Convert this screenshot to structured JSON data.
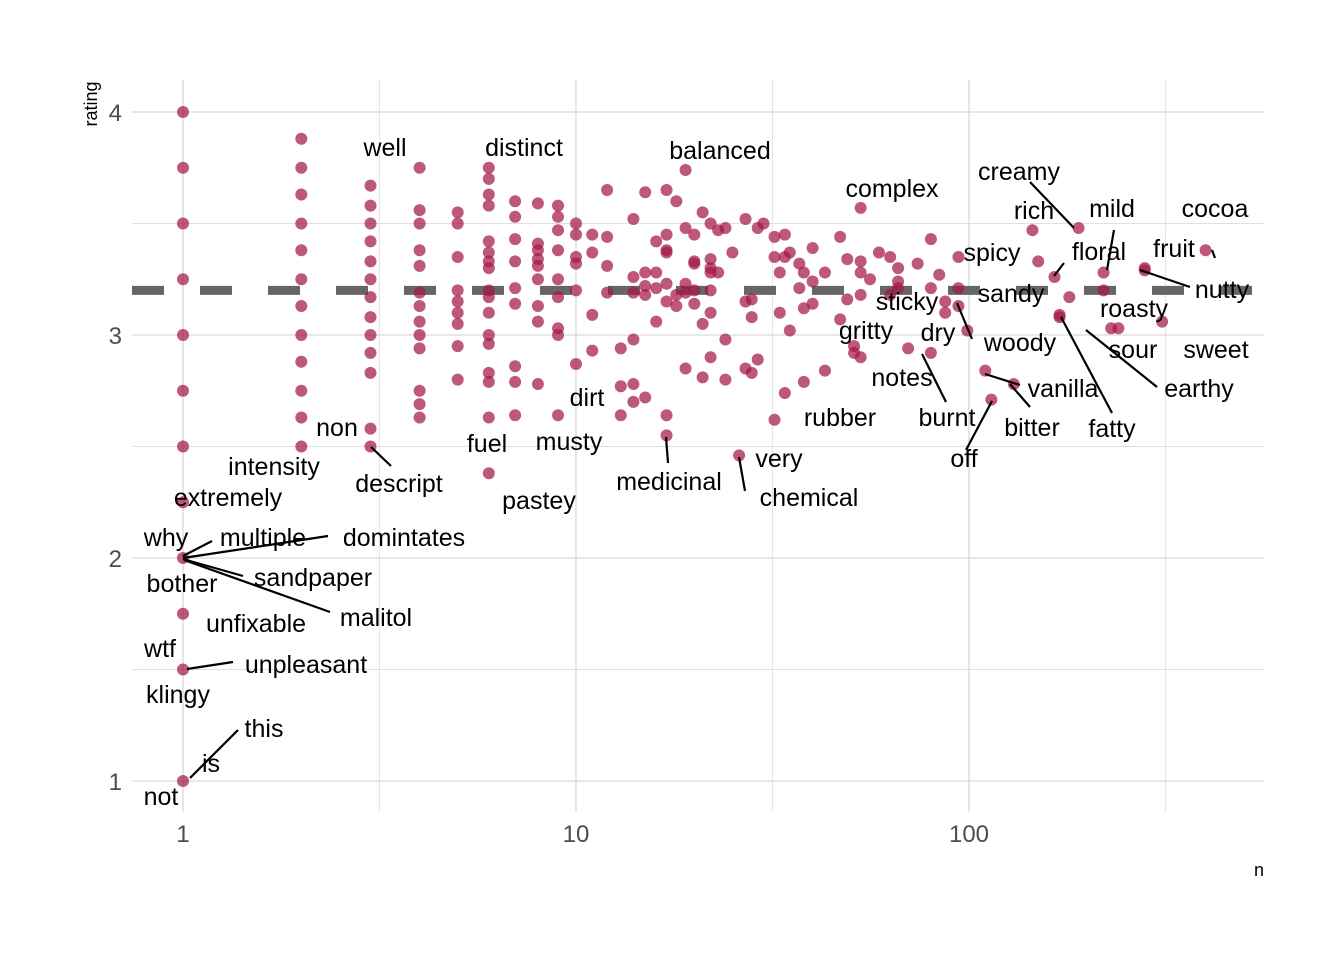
{
  "chart_data": {
    "type": "scatter",
    "xlabel": "n",
    "ylabel": "rating",
    "x_scale": "log10",
    "xlim": [
      0.78,
      560
    ],
    "ylim": [
      0.87,
      4.2
    ],
    "x_ticks": [
      1,
      10,
      100
    ],
    "x_tick_labels": [
      "1",
      "10",
      "100"
    ],
    "x_minor_ticks": [
      3.16,
      31.6,
      316
    ],
    "y_ticks": [
      1,
      2,
      3,
      4
    ],
    "y_tick_labels": [
      "1",
      "2",
      "3",
      "4"
    ],
    "y_minor_ticks": [
      1.5,
      2.5,
      3.5
    ],
    "grid": true,
    "point_color": "#a3174a",
    "reference_line": {
      "y": 3.2,
      "style": "dashed",
      "color": "#666666"
    },
    "points": [
      [
        1,
        4
      ],
      [
        1,
        3.75
      ],
      [
        1,
        3.5
      ],
      [
        1,
        3.25
      ],
      [
        1,
        3
      ],
      [
        1,
        2.75
      ],
      [
        1,
        2.5
      ],
      [
        1,
        2.25
      ],
      [
        1,
        2
      ],
      [
        1,
        1.75
      ],
      [
        1,
        1.5
      ],
      [
        1,
        1
      ],
      [
        2,
        3.88
      ],
      [
        2,
        3.75
      ],
      [
        2,
        3.63
      ],
      [
        2,
        3.5
      ],
      [
        2,
        3.38
      ],
      [
        2,
        3.25
      ],
      [
        2,
        3.13
      ],
      [
        2,
        3
      ],
      [
        2,
        2.88
      ],
      [
        2,
        2.75
      ],
      [
        2,
        2.63
      ],
      [
        2,
        2.5
      ],
      [
        3,
        3.67
      ],
      [
        3,
        3.58
      ],
      [
        3,
        3.5
      ],
      [
        3,
        3.42
      ],
      [
        3,
        3.33
      ],
      [
        3,
        3.25
      ],
      [
        3,
        3.17
      ],
      [
        3,
        3.08
      ],
      [
        3,
        3
      ],
      [
        3,
        2.92
      ],
      [
        3,
        2.83
      ],
      [
        3,
        2.58
      ],
      [
        3,
        2.5
      ],
      [
        4,
        3.75
      ],
      [
        4,
        3.56
      ],
      [
        4,
        3.5
      ],
      [
        4,
        3.38
      ],
      [
        4,
        3.31
      ],
      [
        4,
        3.19
      ],
      [
        4,
        3.13
      ],
      [
        4,
        3.06
      ],
      [
        4,
        3
      ],
      [
        4,
        2.94
      ],
      [
        4,
        2.75
      ],
      [
        4,
        2.69
      ],
      [
        4,
        2.63
      ],
      [
        5,
        3.55
      ],
      [
        5,
        3.5
      ],
      [
        5,
        3.35
      ],
      [
        5,
        3.2
      ],
      [
        5,
        3.15
      ],
      [
        5,
        3.1
      ],
      [
        5,
        3.05
      ],
      [
        5,
        2.95
      ],
      [
        5,
        2.8
      ],
      [
        6,
        3.75
      ],
      [
        6,
        3.7
      ],
      [
        6,
        3.63
      ],
      [
        6,
        3.58
      ],
      [
        6,
        3.42
      ],
      [
        6,
        3.37
      ],
      [
        6,
        3.33
      ],
      [
        6,
        3.3
      ],
      [
        6,
        3.2
      ],
      [
        6,
        3.17
      ],
      [
        6,
        3.1
      ],
      [
        6,
        3
      ],
      [
        6,
        2.96
      ],
      [
        6,
        2.83
      ],
      [
        6,
        2.79
      ],
      [
        6,
        2.63
      ],
      [
        6,
        2.38
      ],
      [
        7,
        3.6
      ],
      [
        7,
        3.53
      ],
      [
        7,
        3.43
      ],
      [
        7,
        3.33
      ],
      [
        7,
        3.21
      ],
      [
        7,
        3.14
      ],
      [
        7,
        2.86
      ],
      [
        7,
        2.79
      ],
      [
        7,
        2.64
      ],
      [
        8,
        3.59
      ],
      [
        8,
        3.41
      ],
      [
        8,
        3.38
      ],
      [
        8,
        3.34
      ],
      [
        8,
        3.31
      ],
      [
        8,
        3.25
      ],
      [
        8,
        3.13
      ],
      [
        8,
        3.06
      ],
      [
        8,
        2.78
      ],
      [
        9,
        3.58
      ],
      [
        9,
        3.53
      ],
      [
        9,
        3.47
      ],
      [
        9,
        3.38
      ],
      [
        9,
        3.25
      ],
      [
        9,
        3.17
      ],
      [
        9,
        3.03
      ],
      [
        9,
        3
      ],
      [
        9,
        2.64
      ],
      [
        10,
        3.5
      ],
      [
        10,
        3.45
      ],
      [
        10,
        3.35
      ],
      [
        10,
        3.32
      ],
      [
        10,
        3.2
      ],
      [
        10,
        2.87
      ],
      [
        11,
        3.45
      ],
      [
        11,
        3.37
      ],
      [
        11,
        3.09
      ],
      [
        11,
        2.93
      ],
      [
        12,
        3.65
      ],
      [
        12,
        3.44
      ],
      [
        12,
        3.31
      ],
      [
        12,
        3.19
      ],
      [
        13,
        2.94
      ],
      [
        13,
        2.77
      ],
      [
        13,
        2.64
      ],
      [
        14,
        3.52
      ],
      [
        14,
        3.26
      ],
      [
        14,
        3.19
      ],
      [
        14,
        2.98
      ],
      [
        14,
        2.78
      ],
      [
        14,
        2.7
      ],
      [
        15,
        3.64
      ],
      [
        15,
        3.28
      ],
      [
        15,
        3.22
      ],
      [
        15,
        3.18
      ],
      [
        15,
        2.72
      ],
      [
        16,
        3.42
      ],
      [
        16,
        3.28
      ],
      [
        16,
        3.21
      ],
      [
        16,
        3.06
      ],
      [
        17,
        3.65
      ],
      [
        17,
        3.45
      ],
      [
        17,
        3.38
      ],
      [
        17,
        3.37
      ],
      [
        17,
        3.23
      ],
      [
        17,
        3.15
      ],
      [
        17,
        2.64
      ],
      [
        17,
        2.55
      ],
      [
        18,
        3.6
      ],
      [
        18,
        3.18
      ],
      [
        18,
        3.13
      ],
      [
        19,
        3.74
      ],
      [
        19,
        3.48
      ],
      [
        19,
        3.23
      ],
      [
        19,
        3.19
      ],
      [
        19,
        2.85
      ],
      [
        20,
        3.45
      ],
      [
        20,
        3.33
      ],
      [
        20,
        3.32
      ],
      [
        20,
        3.2
      ],
      [
        20,
        3.14
      ],
      [
        21,
        3.55
      ],
      [
        21,
        3.05
      ],
      [
        21,
        2.81
      ],
      [
        22,
        3.5
      ],
      [
        22,
        3.34
      ],
      [
        22,
        3.3
      ],
      [
        22,
        3.28
      ],
      [
        22,
        3.2
      ],
      [
        22,
        3.1
      ],
      [
        22,
        2.9
      ],
      [
        23,
        3.47
      ],
      [
        23,
        3.28
      ],
      [
        24,
        3.48
      ],
      [
        24,
        2.98
      ],
      [
        24,
        2.8
      ],
      [
        25,
        3.37
      ],
      [
        26,
        2.46
      ],
      [
        27,
        3.52
      ],
      [
        27,
        3.15
      ],
      [
        27,
        2.85
      ],
      [
        28,
        3.16
      ],
      [
        28,
        3.08
      ],
      [
        28,
        2.83
      ],
      [
        29,
        3.48
      ],
      [
        29,
        2.89
      ],
      [
        30,
        3.5
      ],
      [
        32,
        3.44
      ],
      [
        32,
        3.35
      ],
      [
        32,
        2.62
      ],
      [
        33,
        3.28
      ],
      [
        33,
        3.1
      ],
      [
        34,
        3.45
      ],
      [
        34,
        3.35
      ],
      [
        34,
        2.74
      ],
      [
        35,
        3.37
      ],
      [
        35,
        3.02
      ],
      [
        37,
        3.32
      ],
      [
        37,
        3.21
      ],
      [
        38,
        3.28
      ],
      [
        38,
        3.12
      ],
      [
        38,
        2.79
      ],
      [
        40,
        3.39
      ],
      [
        40,
        3.24
      ],
      [
        40,
        3.14
      ],
      [
        43,
        3.28
      ],
      [
        43,
        2.84
      ],
      [
        47,
        3.44
      ],
      [
        47,
        3.07
      ],
      [
        49,
        3.34
      ],
      [
        49,
        3.16
      ],
      [
        51,
        2.95
      ],
      [
        51,
        2.92
      ],
      [
        53,
        3.57
      ],
      [
        53,
        3.33
      ],
      [
        53,
        3.28
      ],
      [
        53,
        3.18
      ],
      [
        53,
        2.9
      ],
      [
        56,
        3.25
      ],
      [
        59,
        3.37
      ],
      [
        63,
        3.35
      ],
      [
        63,
        3.18
      ],
      [
        66,
        3.3
      ],
      [
        66,
        3.24
      ],
      [
        66,
        3.21
      ],
      [
        70,
        2.94
      ],
      [
        74,
        3.32
      ],
      [
        80,
        3.43
      ],
      [
        80,
        3.21
      ],
      [
        80,
        2.92
      ],
      [
        84,
        3.27
      ],
      [
        87,
        3.15
      ],
      [
        87,
        3.1
      ],
      [
        94,
        3.35
      ],
      [
        94,
        3.21
      ],
      [
        94,
        3.13
      ],
      [
        99,
        3.02
      ],
      [
        110,
        2.84
      ],
      [
        114,
        2.71
      ],
      [
        130,
        2.78
      ],
      [
        145,
        3.47
      ],
      [
        150,
        3.33
      ],
      [
        165,
        3.26
      ],
      [
        170,
        3.09
      ],
      [
        170,
        3.08
      ],
      [
        180,
        3.17
      ],
      [
        190,
        3.48
      ],
      [
        220,
        3.28
      ],
      [
        220,
        3.2
      ],
      [
        230,
        3.03
      ],
      [
        240,
        3.03
      ],
      [
        280,
        3.3
      ],
      [
        280,
        3.29
      ],
      [
        310,
        3.06
      ],
      [
        400,
        3.38
      ]
    ],
    "annotations": [
      {
        "text": "well",
        "x": 3,
        "y": 3.75
      },
      {
        "text": "distinct",
        "x": 6,
        "y": 3.75
      },
      {
        "text": "balanced",
        "x": 19,
        "y": 3.74
      },
      {
        "text": "complex",
        "x": 53,
        "y": 3.57
      },
      {
        "text": "creamy",
        "x": 190,
        "y": 3.48
      },
      {
        "text": "rich",
        "x": 145,
        "y": 3.47
      },
      {
        "text": "mild",
        "x": 220,
        "y": 3.28
      },
      {
        "text": "cocoa",
        "x": 400,
        "y": 3.38
      },
      {
        "text": "fruit",
        "x": 400,
        "y": 3.38
      },
      {
        "text": "floral",
        "x": 165,
        "y": 3.26
      },
      {
        "text": "spicy",
        "x": 150,
        "y": 3.33
      },
      {
        "text": "nutty",
        "x": 280,
        "y": 3.29
      },
      {
        "text": "sandy",
        "x": 180,
        "y": 3.17
      },
      {
        "text": "sticky",
        "x": 87,
        "y": 3.15
      },
      {
        "text": "roasty",
        "x": 220,
        "y": 3.2
      },
      {
        "text": "gritty",
        "x": 66,
        "y": 3.21
      },
      {
        "text": "dry",
        "x": 94,
        "y": 3.13
      },
      {
        "text": "woody",
        "x": 94,
        "y": 3.13
      },
      {
        "text": "sour",
        "x": 230,
        "y": 3.03
      },
      {
        "text": "sweet",
        "x": 310,
        "y": 3.06
      },
      {
        "text": "notes",
        "x": 70,
        "y": 2.94
      },
      {
        "text": "vanilla",
        "x": 110,
        "y": 2.84
      },
      {
        "text": "earthy",
        "x": 240,
        "y": 3.03
      },
      {
        "text": "dirt",
        "x": 10,
        "y": 2.87
      },
      {
        "text": "rubber",
        "x": 34,
        "y": 2.74
      },
      {
        "text": "burnt",
        "x": 80,
        "y": 2.92
      },
      {
        "text": "bitter",
        "x": 130,
        "y": 2.78
      },
      {
        "text": "fatty",
        "x": 170,
        "y": 3.09
      },
      {
        "text": "non",
        "x": 3,
        "y": 2.58
      },
      {
        "text": "fuel",
        "x": 6,
        "y": 2.63
      },
      {
        "text": "musty",
        "x": 9,
        "y": 2.64
      },
      {
        "text": "off",
        "x": 114,
        "y": 2.71
      },
      {
        "text": "intensity",
        "x": 2,
        "y": 2.5
      },
      {
        "text": "very",
        "x": 26,
        "y": 2.46
      },
      {
        "text": "medicinal",
        "x": 17,
        "y": 2.55
      },
      {
        "text": "descript",
        "x": 3,
        "y": 2.5
      },
      {
        "text": "chemical",
        "x": 26,
        "y": 2.46
      },
      {
        "text": "extremely",
        "x": 1,
        "y": 2.25
      },
      {
        "text": "pastey",
        "x": 6,
        "y": 2.38
      },
      {
        "text": "why",
        "x": 1,
        "y": 2
      },
      {
        "text": "multiple",
        "x": 1,
        "y": 2
      },
      {
        "text": "domintates",
        "x": 1,
        "y": 2
      },
      {
        "text": "bother",
        "x": 1,
        "y": 2
      },
      {
        "text": "sandpaper",
        "x": 1,
        "y": 2
      },
      {
        "text": "malitol",
        "x": 1,
        "y": 2
      },
      {
        "text": "unfixable",
        "x": 1,
        "y": 1.75
      },
      {
        "text": "wtf",
        "x": 1,
        "y": 1.5
      },
      {
        "text": "unpleasant",
        "x": 1,
        "y": 1.5
      },
      {
        "text": "klingy",
        "x": 1,
        "y": 1.5
      },
      {
        "text": "this",
        "x": 1,
        "y": 1
      },
      {
        "text": "is",
        "x": 1,
        "y": 1
      },
      {
        "text": "not",
        "x": 1,
        "y": 1
      }
    ]
  }
}
